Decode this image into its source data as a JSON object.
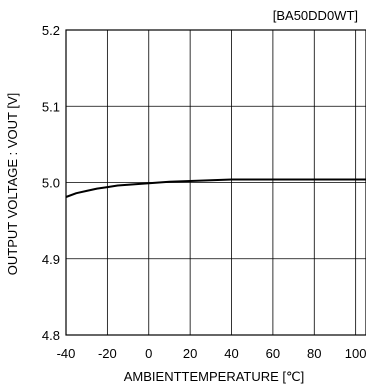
{
  "chart_data": {
    "type": "line",
    "title": "[BA50DD0WT]",
    "xlabel": "AMBIENTTEMPERATURE [℃]",
    "ylabel": "OUTPUT VOLTAGE : VOUT [V]",
    "xlim": [
      -40,
      105
    ],
    "ylim": [
      4.8,
      5.2
    ],
    "x_ticks": [
      -40,
      -20,
      0,
      20,
      40,
      60,
      80,
      100
    ],
    "y_ticks": [
      4.8,
      4.9,
      5.0,
      5.1,
      5.2
    ],
    "x_tick_labels": [
      "-40",
      "-20",
      "0",
      "20",
      "40",
      "60",
      "80",
      "100"
    ],
    "y_tick_labels": [
      "4.8",
      "4.9",
      "5.0",
      "5.1",
      "5.2"
    ],
    "grid": true,
    "series": [
      {
        "color": "#000000",
        "x": [
          -40,
          -35,
          -30,
          -25,
          -20,
          -15,
          -10,
          -5,
          0,
          5,
          10,
          20,
          30,
          40,
          60,
          80,
          105
        ],
        "y": [
          4.981,
          4.986,
          4.989,
          4.992,
          4.994,
          4.996,
          4.997,
          4.998,
          4.999,
          5.0,
          5.001,
          5.002,
          5.003,
          5.004,
          5.004,
          5.004,
          5.004
        ]
      }
    ]
  }
}
